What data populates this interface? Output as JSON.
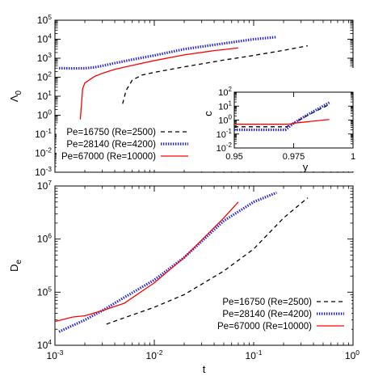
{
  "chart_data": [
    {
      "type": "line",
      "id": "top",
      "ylabel": "Λ",
      "ylabel_sub": "0",
      "xlabel": "",
      "xscale": "log",
      "yscale": "log",
      "xlim": [
        0.001,
        1
      ],
      "ylim": [
        0.001,
        100000
      ],
      "xticks": [
        0.001,
        0.01,
        0.1,
        1
      ],
      "xticks_labeled": false,
      "yticks": [
        {
          "value": 0.001,
          "base": "10",
          "exp": "-3"
        },
        {
          "value": 0.01,
          "base": "10",
          "exp": "-2"
        },
        {
          "value": 0.1,
          "base": "10",
          "exp": "-1"
        },
        {
          "value": 1,
          "base": "10",
          "exp": "0"
        },
        {
          "value": 10,
          "base": "10",
          "exp": "1"
        },
        {
          "value": 100,
          "base": "10",
          "exp": "2"
        },
        {
          "value": 1000,
          "base": "10",
          "exp": "3"
        },
        {
          "value": 10000,
          "base": "10",
          "exp": "4"
        },
        {
          "value": 100000,
          "base": "10",
          "exp": "5"
        }
      ],
      "legend_position": "bottom-left",
      "series": [
        {
          "name": "Pe=16750 (Re=2500)",
          "style": "dashed",
          "color": "#000000",
          "x": [
            0.0048,
            0.0052,
            0.006,
            0.0075,
            0.01,
            0.02,
            0.05,
            0.1,
            0.2,
            0.35
          ],
          "y": [
            4,
            20,
            70,
            130,
            180,
            350,
            800,
            1400,
            2600,
            4500
          ]
        },
        {
          "name": "Pe=28140 (Re=4200)",
          "style": "dotted",
          "color": "#1f1fe0",
          "x": [
            0.0011,
            0.0015,
            0.002,
            0.0025,
            0.003,
            0.004,
            0.006,
            0.01,
            0.02,
            0.05,
            0.1,
            0.17
          ],
          "y": [
            300,
            290,
            295,
            330,
            400,
            550,
            850,
            1400,
            3000,
            6000,
            10000,
            13000
          ]
        },
        {
          "name": "Pe=67000 (Re=10000)",
          "style": "solid",
          "color": "#ff0000",
          "x": [
            0.0018,
            0.0019,
            0.002,
            0.0025,
            0.003,
            0.004,
            0.006,
            0.01,
            0.02,
            0.04,
            0.07
          ],
          "y": [
            0.6,
            25,
            50,
            110,
            160,
            260,
            420,
            750,
            1500,
            2500,
            3500
          ]
        }
      ]
    },
    {
      "type": "line",
      "id": "inset",
      "ylabel": "c",
      "xlabel": "y",
      "xscale": "linear",
      "yscale": "log",
      "xlim": [
        0.95,
        1.0
      ],
      "ylim": [
        0.01,
        100
      ],
      "xticks": [
        {
          "value": 0.95,
          "label": "0.95"
        },
        {
          "value": 0.975,
          "label": "0.975"
        },
        {
          "value": 1.0,
          "label": "1"
        }
      ],
      "yticks": [
        {
          "value": 0.01,
          "base": "10",
          "exp": "-2"
        },
        {
          "value": 0.1,
          "base": "10",
          "exp": "-1"
        },
        {
          "value": 1,
          "base": "10",
          "exp": "0"
        },
        {
          "value": 10,
          "base": "10",
          "exp": "1"
        },
        {
          "value": 100,
          "base": "10",
          "exp": "2"
        }
      ],
      "series": [
        {
          "name": "Pe=16750 (Re=2500)",
          "style": "dashed",
          "color": "#000000",
          "x": [
            0.95,
            0.972,
            0.975,
            0.98,
            0.985,
            0.99
          ],
          "y": [
            0.33,
            0.33,
            0.6,
            1.8,
            5,
            13
          ]
        },
        {
          "name": "Pe=28140 (Re=4200)",
          "style": "dotted",
          "color": "#1f1fe0",
          "x": [
            0.95,
            0.9715,
            0.975,
            0.98,
            0.985,
            0.99
          ],
          "y": [
            0.2,
            0.2,
            0.6,
            2,
            6,
            18
          ]
        },
        {
          "name": "Pe=67000 (Re=10000)",
          "style": "solid",
          "color": "#ff0000",
          "x": [
            0.95,
            0.973,
            0.975,
            0.99
          ],
          "y": [
            0.5,
            0.5,
            0.6,
            1.1
          ]
        }
      ]
    },
    {
      "type": "line",
      "id": "bottom",
      "ylabel": "D",
      "ylabel_sub": "e",
      "xlabel": "t",
      "xscale": "log",
      "yscale": "log",
      "xlim": [
        0.001,
        1
      ],
      "ylim": [
        10000,
        10000000
      ],
      "xticks": [
        {
          "value": 0.001,
          "base": "10",
          "exp": "-3"
        },
        {
          "value": 0.01,
          "base": "10",
          "exp": "-2"
        },
        {
          "value": 0.1,
          "base": "10",
          "exp": "-1"
        },
        {
          "value": 1,
          "base": "10",
          "exp": "0"
        }
      ],
      "yticks": [
        {
          "value": 10000,
          "base": "10",
          "exp": "4"
        },
        {
          "value": 100000,
          "base": "10",
          "exp": "5"
        },
        {
          "value": 1000000,
          "base": "10",
          "exp": "6"
        },
        {
          "value": 10000000,
          "base": "10",
          "exp": "7"
        }
      ],
      "legend_position": "bottom-right",
      "series": [
        {
          "name": "Pe=16750 (Re=2500)",
          "style": "dashed",
          "color": "#000000",
          "x": [
            0.0033,
            0.005,
            0.01,
            0.02,
            0.05,
            0.1,
            0.2,
            0.35
          ],
          "y": [
            25000,
            33000,
            52000,
            90000,
            250000,
            650000,
            2500000,
            6000000
          ]
        },
        {
          "name": "Pe=28140 (Re=4200)",
          "style": "dotted",
          "color": "#1f1fe0",
          "x": [
            0.0011,
            0.002,
            0.003,
            0.005,
            0.01,
            0.02,
            0.05,
            0.1,
            0.17
          ],
          "y": [
            18000,
            30000,
            45000,
            80000,
            170000,
            450000,
            2200000,
            5000000,
            7500000
          ]
        },
        {
          "name": "Pe=67000 (Re=10000)",
          "style": "solid",
          "color": "#ff0000",
          "x": [
            0.001,
            0.0015,
            0.002,
            0.003,
            0.005,
            0.01,
            0.02,
            0.05,
            0.07
          ],
          "y": [
            28000,
            34000,
            36000,
            45000,
            62000,
            150000,
            450000,
            2500000,
            5000000
          ]
        }
      ]
    }
  ]
}
